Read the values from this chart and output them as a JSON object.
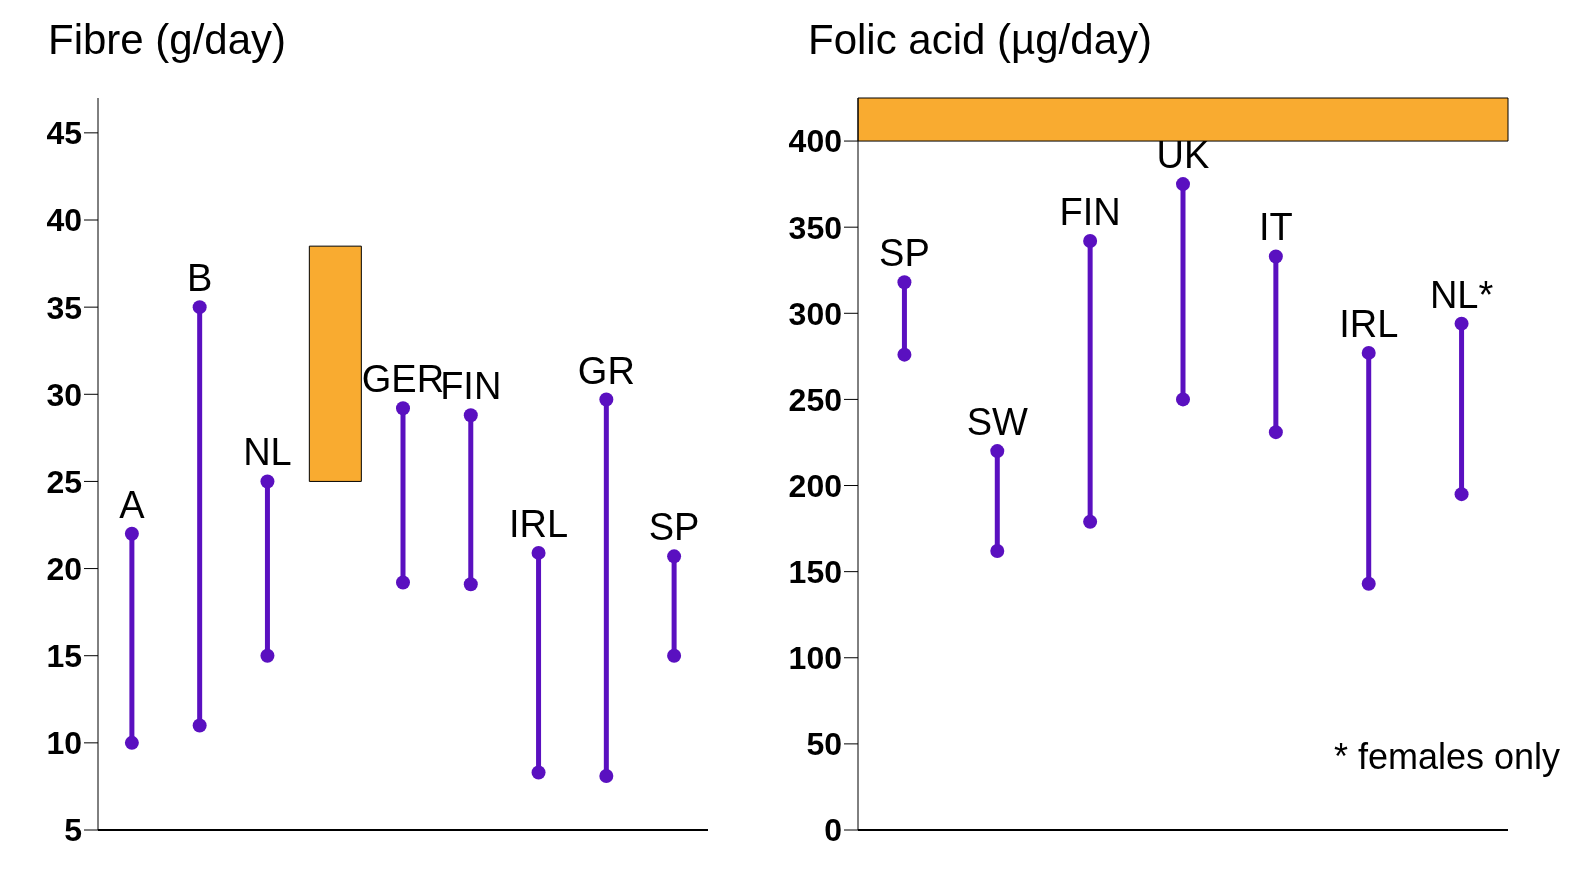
{
  "chart_data": [
    {
      "type": "line",
      "title": "Fibre (g/day)",
      "categories": [
        "A",
        "B",
        "NL",
        null,
        "GER",
        "FIN",
        "IRL",
        "GR",
        "SP"
      ],
      "series": [
        {
          "color": "#5a10c0",
          "x": [
            "A",
            "A"
          ],
          "values": [
            10,
            22
          ]
        },
        {
          "color": "#5a10c0",
          "x": [
            "B",
            "B"
          ],
          "values": [
            11,
            35
          ]
        },
        {
          "color": "#5a10c0",
          "x": [
            "NL",
            "NL"
          ],
          "values": [
            15,
            25
          ]
        },
        {
          "color": "#5a10c0",
          "x": [
            "GER",
            "GER"
          ],
          "values": [
            19.2,
            29.2
          ]
        },
        {
          "color": "#5a10c0",
          "x": [
            "FIN",
            "FIN"
          ],
          "values": [
            19.1,
            28.8
          ]
        },
        {
          "color": "#5a10c0",
          "x": [
            "IRL",
            "IRL"
          ],
          "values": [
            8.3,
            20.9
          ]
        },
        {
          "color": "#5a10c0",
          "x": [
            "GR",
            "GR"
          ],
          "values": [
            8.1,
            29.7
          ]
        },
        {
          "color": "#5a10c0",
          "x": [
            "SP",
            "SP"
          ],
          "values": [
            15,
            20.7
          ]
        },
        {
          "type": "bar",
          "color": "#f9ab30",
          "values": [
            null,
            null,
            null,
            13.5,
            null,
            null,
            null,
            null,
            null
          ],
          "base": [
            null,
            null,
            null,
            25,
            null,
            null,
            null,
            null,
            null
          ]
        }
      ],
      "ylim": [
        5,
        47
      ],
      "yticks": [
        5,
        10,
        15,
        20,
        25,
        30,
        35,
        40,
        45
      ],
      "tick_labels": "y",
      "grid": false,
      "legend": false,
      "marker": "circle",
      "line_style": "solid"
    },
    {
      "type": "line",
      "title": "Folic acid (µg/day)",
      "categories": [
        "SP",
        "SW",
        "FIN",
        "UK",
        "IT",
        "IRL",
        "NL*"
      ],
      "series": [
        {
          "color": "#5a10c0",
          "x": [
            "SP",
            "SP"
          ],
          "values": [
            276,
            318
          ]
        },
        {
          "color": "#5a10c0",
          "x": [
            "SW",
            "SW"
          ],
          "values": [
            162,
            220
          ]
        },
        {
          "color": "#5a10c0",
          "x": [
            "FIN",
            "FIN"
          ],
          "values": [
            179,
            342
          ]
        },
        {
          "color": "#5a10c0",
          "x": [
            "UK",
            "UK"
          ],
          "values": [
            250,
            375
          ]
        },
        {
          "color": "#5a10c0",
          "x": [
            "IT",
            "IT"
          ],
          "values": [
            231,
            333
          ]
        },
        {
          "color": "#5a10c0",
          "x": [
            "IRL",
            "IRL"
          ],
          "values": [
            143,
            277
          ]
        },
        {
          "color": "#5a10c0",
          "x": [
            "NL*",
            "NL*"
          ],
          "values": [
            195,
            294
          ]
        }
      ],
      "bands": [
        {
          "axis": "y",
          "from": 400,
          "to": 425,
          "color": "#f9ab30"
        }
      ],
      "annotations": [
        "* females only"
      ],
      "ylim": [
        0,
        425
      ],
      "yticks": [
        0,
        50,
        100,
        150,
        200,
        250,
        300,
        350,
        400
      ],
      "tick_labels": "y",
      "grid": false,
      "legend": false,
      "marker": "circle",
      "line_style": "solid"
    }
  ]
}
